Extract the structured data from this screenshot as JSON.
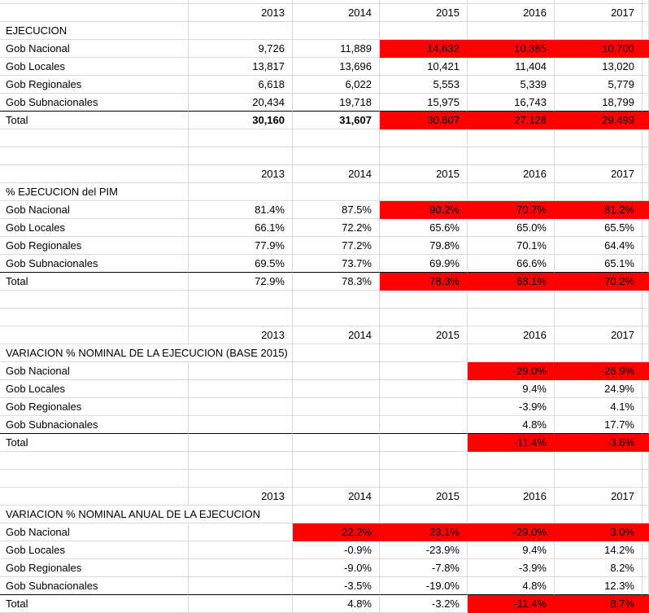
{
  "colors": {
    "highlight_fill": "#ff0000",
    "gridline": "#d9d9d9",
    "cell_text": "#000000",
    "total_border": "#000000"
  },
  "years": [
    "2013",
    "2014",
    "2015",
    "2016",
    "2017"
  ],
  "tables": [
    {
      "title": "EJECUCION",
      "rows": [
        {
          "label": "Gob Nacional",
          "values": [
            "9,726",
            "11,889",
            "14,632",
            "10,385",
            "10,700"
          ],
          "red": [
            false,
            false,
            true,
            true,
            true
          ],
          "edge_red": true
        },
        {
          "label": "Gob Locales",
          "values": [
            "13,817",
            "13,696",
            "10,421",
            "11,404",
            "13,020"
          ],
          "red": [
            false,
            false,
            false,
            false,
            false
          ]
        },
        {
          "label": "Gob Regionales",
          "values": [
            "6,618",
            "6,022",
            "5,553",
            "5,339",
            "5,779"
          ],
          "red": [
            false,
            false,
            false,
            false,
            false
          ]
        },
        {
          "label": "Gob Subnacionales",
          "values": [
            "20,434",
            "19,718",
            "15,975",
            "16,743",
            "18,799"
          ],
          "red": [
            false,
            false,
            false,
            false,
            false
          ]
        },
        {
          "label": "Total",
          "values": [
            "30,160",
            "31,607",
            "30,607",
            "27,128",
            "29,499"
          ],
          "red": [
            false,
            false,
            true,
            true,
            true
          ],
          "bold": [
            true,
            true,
            false,
            false,
            false
          ],
          "total": true,
          "edge_red": true
        }
      ]
    },
    {
      "title": "% EJECUCION del PIM",
      "rows": [
        {
          "label": "Gob Nacional",
          "values": [
            "81.4%",
            "87.5%",
            "90.2%",
            "70.7%",
            "81.2%"
          ],
          "red": [
            false,
            false,
            true,
            true,
            true
          ],
          "edge_red": true
        },
        {
          "label": "Gob Locales",
          "values": [
            "66.1%",
            "72.2%",
            "65.6%",
            "65.0%",
            "65.5%"
          ],
          "red": [
            false,
            false,
            false,
            false,
            false
          ]
        },
        {
          "label": "Gob Regionales",
          "values": [
            "77.9%",
            "77.2%",
            "79.8%",
            "70.1%",
            "64.4%"
          ],
          "red": [
            false,
            false,
            false,
            false,
            false
          ]
        },
        {
          "label": "Gob Subnacionales",
          "values": [
            "69.5%",
            "73.7%",
            "69.9%",
            "66.6%",
            "65.1%"
          ],
          "red": [
            false,
            false,
            false,
            false,
            false
          ]
        },
        {
          "label": "Total",
          "values": [
            "72.9%",
            "78.3%",
            "78.3%",
            "68.1%",
            "70.2%"
          ],
          "red": [
            false,
            false,
            true,
            true,
            true
          ],
          "total": true,
          "edge_red": true
        }
      ]
    },
    {
      "title": "VARIACION % NOMINAL DE LA EJECUCION (BASE 2015)",
      "rows": [
        {
          "label": "Gob Nacional",
          "values": [
            "",
            "",
            "",
            "-29.0%",
            "-26.9%"
          ],
          "red": [
            false,
            false,
            false,
            true,
            true
          ],
          "edge_red": true
        },
        {
          "label": "Gob Locales",
          "values": [
            "",
            "",
            "",
            "9.4%",
            "24.9%"
          ],
          "red": [
            false,
            false,
            false,
            false,
            false
          ]
        },
        {
          "label": "Gob Regionales",
          "values": [
            "",
            "",
            "",
            "-3.9%",
            "4.1%"
          ],
          "red": [
            false,
            false,
            false,
            false,
            false
          ]
        },
        {
          "label": "Gob Subnacionales",
          "values": [
            "",
            "",
            "",
            "4.8%",
            "17.7%"
          ],
          "red": [
            false,
            false,
            false,
            false,
            false
          ]
        },
        {
          "label": "Total",
          "values": [
            "",
            "",
            "",
            "-11.4%",
            "-3.6%"
          ],
          "red": [
            false,
            false,
            false,
            true,
            true
          ],
          "total": true,
          "edge_red": true
        }
      ]
    },
    {
      "title": "VARIACION % NOMINAL ANUAL DE LA EJECUCION",
      "rows": [
        {
          "label": "Gob Nacional",
          "values": [
            "",
            "22.2%",
            "23.1%",
            "-29.0%",
            "3.0%"
          ],
          "red": [
            false,
            true,
            true,
            true,
            true
          ],
          "edge_red": true
        },
        {
          "label": "Gob Locales",
          "values": [
            "",
            "-0.9%",
            "-23.9%",
            "9.4%",
            "14.2%"
          ],
          "red": [
            false,
            false,
            false,
            false,
            false
          ]
        },
        {
          "label": "Gob Regionales",
          "values": [
            "",
            "-9.0%",
            "-7.8%",
            "-3.9%",
            "8.2%"
          ],
          "red": [
            false,
            false,
            false,
            false,
            false
          ]
        },
        {
          "label": "Gob Subnacionales",
          "values": [
            "",
            "-3.5%",
            "-19.0%",
            "4.8%",
            "12.3%"
          ],
          "red": [
            false,
            false,
            false,
            false,
            false
          ]
        },
        {
          "label": "Total",
          "values": [
            "",
            "4.8%",
            "-3.2%",
            "-11.4%",
            "8.7%"
          ],
          "red": [
            false,
            false,
            false,
            true,
            true
          ],
          "total": true,
          "edge_red": true
        }
      ]
    }
  ]
}
